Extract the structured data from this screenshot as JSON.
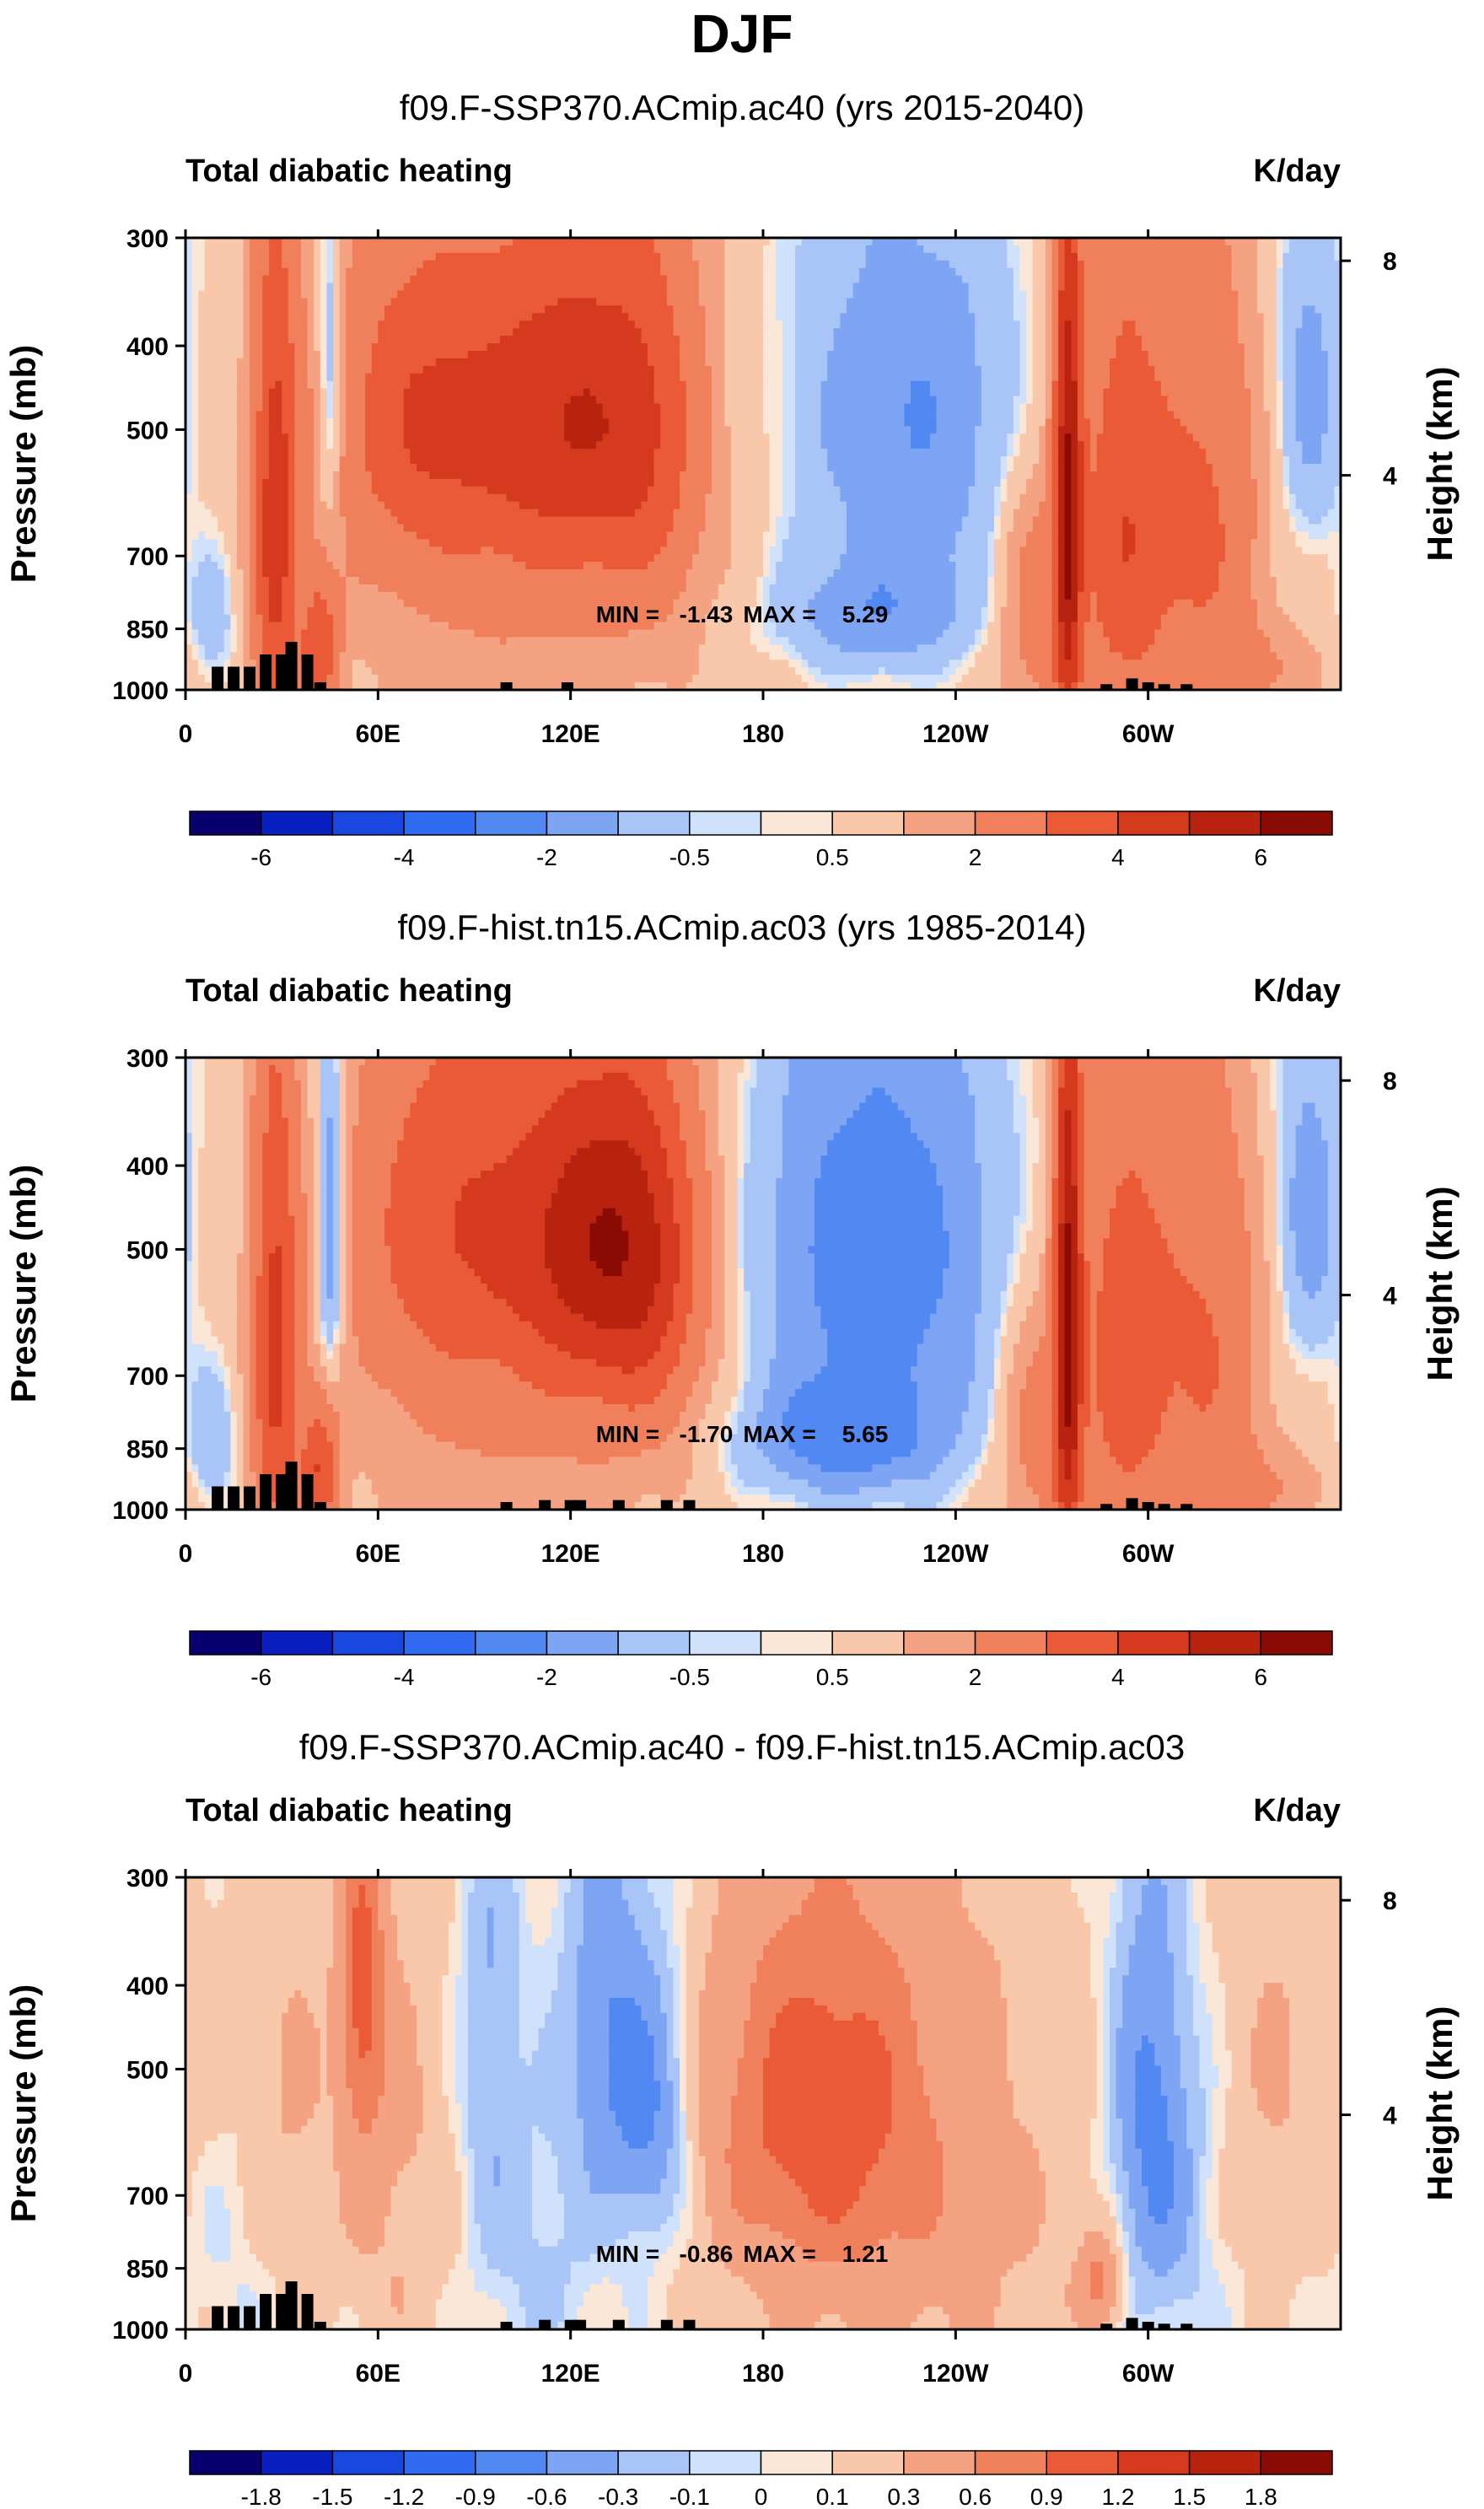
{
  "main_title": "DJF",
  "colors": {
    "palette_17": [
      "#08006e",
      "#0a1fbf",
      "#1947e0",
      "#2f6af0",
      "#5188f2",
      "#7ea5f4",
      "#a9c4f7",
      "#d0e2fb",
      "#fbe7d8",
      "#f9c7aa",
      "#f5a283",
      "#f0805b",
      "#ea5a36",
      "#d63a1e",
      "#b8230f",
      "#8a0a04"
    ],
    "terrain": "#000000"
  },
  "chart_data": [
    {
      "type": "heatmap",
      "title": "f09.F-SSP370.ACmip.ac40 (yrs 2015-2040)",
      "variable_label": "Total diabatic heating",
      "units": "K/day",
      "ylabel": "Pressure (mb)",
      "ylabel_right": "Height (km)",
      "x_ticks": [
        "0",
        "60E",
        "120E",
        "180",
        "120W",
        "60W"
      ],
      "x_tick_lon": [
        0,
        60,
        120,
        180,
        240,
        300
      ],
      "x_range": [
        0,
        360
      ],
      "y_ticks": [
        "300",
        "400",
        "500",
        "700",
        "850",
        "1000"
      ],
      "y_tick_values": [
        300,
        400,
        500,
        700,
        850,
        1000
      ],
      "y_right_ticks": [
        "8",
        "4"
      ],
      "y_right_values_km": [
        8,
        4
      ],
      "min_label": "MIN =   -1.43",
      "max_label": "MAX =    5.29",
      "min": -1.43,
      "max": 5.29,
      "colorbar_labels": [
        "-6",
        "-4",
        "-2",
        "-0.5",
        "0.5",
        "2",
        "4",
        "6"
      ],
      "colorbar_levels": [
        -6,
        -5,
        -4,
        -3,
        -2,
        -1,
        -0.5,
        -0.1,
        0,
        0.1,
        0.5,
        1,
        2,
        3,
        4,
        5,
        6
      ],
      "features": [
        {
          "lon": 28,
          "p": 650,
          "sx": 5,
          "sp": 320,
          "amp": 3.2
        },
        {
          "lon": 42,
          "p": 900,
          "sx": 4,
          "sp": 120,
          "amp": 2.5
        },
        {
          "lon": 45,
          "p": 450,
          "sx": 3,
          "sp": 150,
          "amp": -1.3
        },
        {
          "lon": 8,
          "p": 850,
          "sx": 6,
          "sp": 120,
          "amp": -0.6
        },
        {
          "lon": 75,
          "p": 480,
          "sx": 20,
          "sp": 150,
          "amp": 2.3
        },
        {
          "lon": 120,
          "p": 480,
          "sx": 18,
          "sp": 160,
          "amp": 2.8
        },
        {
          "lon": 100,
          "p": 650,
          "sx": 40,
          "sp": 300,
          "amp": 0.9
        },
        {
          "lon": 145,
          "p": 500,
          "sx": 12,
          "sp": 200,
          "amp": 1.6
        },
        {
          "lon": 225,
          "p": 480,
          "sx": 25,
          "sp": 180,
          "amp": -1.2
        },
        {
          "lon": 215,
          "p": 820,
          "sx": 22,
          "sp": 90,
          "amp": -1.0
        },
        {
          "lon": 275,
          "p": 600,
          "sx": 3,
          "sp": 350,
          "amp": 4.3
        },
        {
          "lon": 292,
          "p": 650,
          "sx": 10,
          "sp": 300,
          "amp": 2.6
        },
        {
          "lon": 265,
          "p": 800,
          "sx": 8,
          "sp": 200,
          "amp": 1.3
        },
        {
          "lon": 318,
          "p": 650,
          "sx": 12,
          "sp": 280,
          "amp": 1.9
        },
        {
          "lon": 350,
          "p": 450,
          "sx": 8,
          "sp": 150,
          "amp": -0.9
        },
        {
          "lon": 340,
          "p": 950,
          "sx": 15,
          "sp": 80,
          "amp": 0.6
        }
      ],
      "background": 0.2,
      "terrain": [
        [
          10,
          940
        ],
        [
          15,
          940
        ],
        [
          20,
          940
        ],
        [
          25,
          910
        ],
        [
          30,
          910
        ],
        [
          33,
          880
        ],
        [
          38,
          910
        ],
        [
          42,
          980
        ],
        [
          100,
          980
        ],
        [
          119,
          980
        ],
        [
          287,
          985
        ],
        [
          295,
          970
        ],
        [
          300,
          980
        ],
        [
          305,
          985
        ],
        [
          312,
          985
        ]
      ]
    },
    {
      "type": "heatmap",
      "title": "f09.F-hist.tn15.ACmip.ac03 (yrs 1985-2014)",
      "variable_label": "Total diabatic heating",
      "units": "K/day",
      "ylabel": "Pressure (mb)",
      "ylabel_right": "Height (km)",
      "x_ticks": [
        "0",
        "60E",
        "120E",
        "180",
        "120W",
        "60W"
      ],
      "x_tick_lon": [
        0,
        60,
        120,
        180,
        240,
        300
      ],
      "x_range": [
        0,
        360
      ],
      "y_ticks": [
        "300",
        "400",
        "500",
        "700",
        "850",
        "1000"
      ],
      "y_tick_values": [
        300,
        400,
        500,
        700,
        850,
        1000
      ],
      "y_right_ticks": [
        "8",
        "4"
      ],
      "y_right_values_km": [
        8,
        4
      ],
      "min_label": "MIN =   -1.70",
      "max_label": "MAX =    5.65",
      "min": -1.7,
      "max": 5.65,
      "colorbar_labels": [
        "-6",
        "-4",
        "-2",
        "-0.5",
        "0.5",
        "2",
        "4",
        "6"
      ],
      "colorbar_levels": [
        -6,
        -5,
        -4,
        -3,
        -2,
        -1,
        -0.5,
        -0.1,
        0,
        0.1,
        0.5,
        1,
        2,
        3,
        4,
        5,
        6
      ],
      "features": [
        {
          "lon": 28,
          "p": 650,
          "sx": 5,
          "sp": 320,
          "amp": 3.0
        },
        {
          "lon": 42,
          "p": 900,
          "sx": 4,
          "sp": 120,
          "amp": 2.6
        },
        {
          "lon": 45,
          "p": 480,
          "sx": 3,
          "sp": 180,
          "amp": -1.5
        },
        {
          "lon": 8,
          "p": 850,
          "sx": 6,
          "sp": 120,
          "amp": -0.7
        },
        {
          "lon": 80,
          "p": 450,
          "sx": 18,
          "sp": 160,
          "amp": 2.0
        },
        {
          "lon": 125,
          "p": 480,
          "sx": 18,
          "sp": 160,
          "amp": 3.5
        },
        {
          "lon": 100,
          "p": 650,
          "sx": 40,
          "sp": 300,
          "amp": 0.9
        },
        {
          "lon": 145,
          "p": 520,
          "sx": 12,
          "sp": 180,
          "amp": 2.0
        },
        {
          "lon": 215,
          "p": 500,
          "sx": 28,
          "sp": 220,
          "amp": -1.6
        },
        {
          "lon": 205,
          "p": 830,
          "sx": 22,
          "sp": 90,
          "amp": -1.3
        },
        {
          "lon": 275,
          "p": 600,
          "sx": 3,
          "sp": 350,
          "amp": 4.6
        },
        {
          "lon": 292,
          "p": 650,
          "sx": 10,
          "sp": 300,
          "amp": 2.4
        },
        {
          "lon": 265,
          "p": 800,
          "sx": 8,
          "sp": 200,
          "amp": 1.2
        },
        {
          "lon": 318,
          "p": 650,
          "sx": 12,
          "sp": 280,
          "amp": 1.8
        },
        {
          "lon": 350,
          "p": 450,
          "sx": 8,
          "sp": 150,
          "amp": -1.0
        },
        {
          "lon": 340,
          "p": 950,
          "sx": 15,
          "sp": 80,
          "amp": 0.6
        }
      ],
      "background": 0.2,
      "terrain": [
        [
          10,
          940
        ],
        [
          15,
          940
        ],
        [
          20,
          940
        ],
        [
          25,
          910
        ],
        [
          30,
          910
        ],
        [
          33,
          880
        ],
        [
          38,
          910
        ],
        [
          42,
          980
        ],
        [
          100,
          980
        ],
        [
          112,
          975
        ],
        [
          120,
          975
        ],
        [
          123,
          975
        ],
        [
          135,
          975
        ],
        [
          150,
          975
        ],
        [
          157,
          975
        ],
        [
          287,
          985
        ],
        [
          295,
          970
        ],
        [
          300,
          980
        ],
        [
          305,
          985
        ],
        [
          312,
          985
        ]
      ]
    },
    {
      "type": "heatmap",
      "title": "f09.F-SSP370.ACmip.ac40 - f09.F-hist.tn15.ACmip.ac03",
      "variable_label": "Total diabatic heating",
      "units": "K/day",
      "ylabel": "Pressure (mb)",
      "ylabel_right": "Height (km)",
      "x_ticks": [
        "0",
        "60E",
        "120E",
        "180",
        "120W",
        "60W"
      ],
      "x_tick_lon": [
        0,
        60,
        120,
        180,
        240,
        300
      ],
      "x_range": [
        0,
        360
      ],
      "y_ticks": [
        "300",
        "400",
        "500",
        "700",
        "850",
        "1000"
      ],
      "y_tick_values": [
        300,
        400,
        500,
        700,
        850,
        1000
      ],
      "y_right_ticks": [
        "8",
        "4"
      ],
      "y_right_values_km": [
        8,
        4
      ],
      "min_label": "MIN =   -0.86",
      "max_label": "MAX =    1.21",
      "min": -0.86,
      "max": 1.21,
      "colorbar_labels": [
        "-1.8",
        "-1.5",
        "-1.2",
        "-0.9",
        "-0.6",
        "-0.3",
        "-0.1",
        "0",
        "0.1",
        "0.3",
        "0.6",
        "0.9",
        "1.2",
        "1.5",
        "1.8"
      ],
      "colorbar_levels": [
        -2.0,
        -1.8,
        -1.5,
        -1.2,
        -0.9,
        -0.6,
        -0.3,
        -0.1,
        0,
        0.1,
        0.3,
        0.6,
        0.9,
        1.2,
        1.5,
        1.8,
        2.0
      ],
      "features": [
        {
          "lon": 55,
          "p": 400,
          "sx": 5,
          "sp": 140,
          "amp": 0.85
        },
        {
          "lon": 65,
          "p": 650,
          "sx": 14,
          "sp": 300,
          "amp": 0.3
        },
        {
          "lon": 30,
          "p": 550,
          "sx": 10,
          "sp": 250,
          "amp": 0.25
        },
        {
          "lon": 95,
          "p": 450,
          "sx": 6,
          "sp": 200,
          "amp": -0.4
        },
        {
          "lon": 130,
          "p": 450,
          "sx": 8,
          "sp": 160,
          "amp": -0.6
        },
        {
          "lon": 145,
          "p": 560,
          "sx": 8,
          "sp": 150,
          "amp": -0.75
        },
        {
          "lon": 110,
          "p": 800,
          "sx": 15,
          "sp": 200,
          "amp": -0.2
        },
        {
          "lon": 195,
          "p": 550,
          "sx": 22,
          "sp": 180,
          "amp": 0.75
        },
        {
          "lon": 220,
          "p": 650,
          "sx": 40,
          "sp": 350,
          "amp": 0.45
        },
        {
          "lon": 300,
          "p": 500,
          "sx": 8,
          "sp": 200,
          "amp": -0.55
        },
        {
          "lon": 305,
          "p": 700,
          "sx": 10,
          "sp": 200,
          "amp": -0.45
        },
        {
          "lon": 285,
          "p": 880,
          "sx": 5,
          "sp": 80,
          "amp": 0.6
        },
        {
          "lon": 345,
          "p": 500,
          "sx": 18,
          "sp": 250,
          "amp": 0.25
        },
        {
          "lon": 15,
          "p": 750,
          "sx": 10,
          "sp": 200,
          "amp": -0.12
        }
      ],
      "background": 0.05,
      "terrain": [
        [
          10,
          940
        ],
        [
          15,
          940
        ],
        [
          20,
          940
        ],
        [
          25,
          910
        ],
        [
          30,
          910
        ],
        [
          33,
          880
        ],
        [
          38,
          910
        ],
        [
          42,
          980
        ],
        [
          100,
          980
        ],
        [
          112,
          975
        ],
        [
          120,
          975
        ],
        [
          123,
          975
        ],
        [
          135,
          975
        ],
        [
          150,
          975
        ],
        [
          157,
          975
        ],
        [
          287,
          985
        ],
        [
          295,
          970
        ],
        [
          300,
          980
        ],
        [
          305,
          985
        ],
        [
          312,
          985
        ]
      ]
    }
  ]
}
